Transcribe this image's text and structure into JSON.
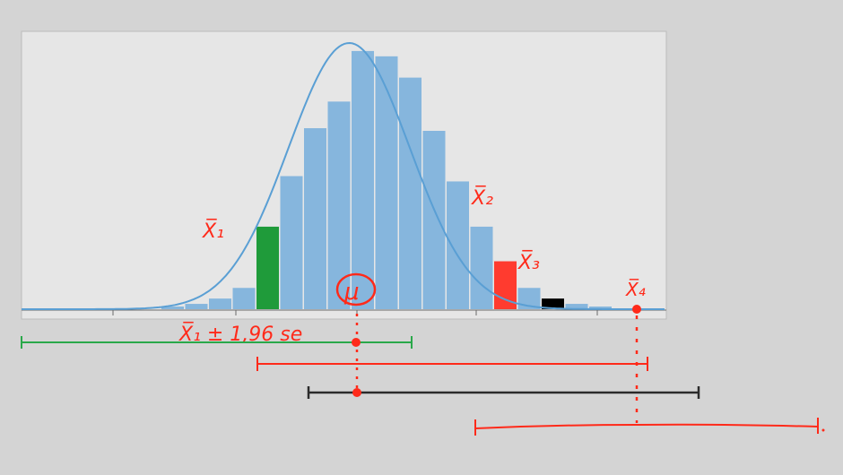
{
  "chart_data": {
    "type": "bar",
    "description_free": true,
    "bars": [
      1,
      2,
      4,
      8,
      31,
      50,
      68,
      78,
      97,
      95,
      87,
      67,
      48,
      31,
      18,
      8,
      4,
      2,
      1
    ],
    "x_range": [
      0,
      19
    ],
    "ylim": [
      0,
      100
    ],
    "highlighted": [
      {
        "index": 4,
        "color": "#1f9b3a"
      },
      {
        "index": 14,
        "color": "#ff3b2f"
      },
      {
        "index": 16,
        "color": "#000000"
      }
    ],
    "curve_color": "#5a9fd4",
    "bar_color": "#86b6dd"
  },
  "annotations": {
    "xbar1": "X̅₁",
    "xbar2": "X̅₂",
    "xbar3": "X̅₃",
    "xbar4": "X̅₄",
    "mu": "μ",
    "ci_formula": "X̅₁ ± 1,96 se"
  },
  "colors": {
    "red": "#ff2a1a",
    "green": "#2aa84a",
    "black": "#2b2b2b"
  }
}
